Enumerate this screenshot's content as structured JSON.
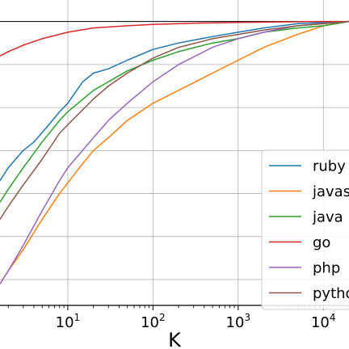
{
  "chart_data": {
    "type": "line",
    "xlabel": "K",
    "xscale": "log",
    "xlim": [
      1.6,
      20000
    ],
    "ylim": [
      0.34,
      1.05
    ],
    "grid": true,
    "legend_position": "center-right",
    "x_ticks": [
      {
        "base": "10",
        "exp": "1",
        "value": 10
      },
      {
        "base": "10",
        "exp": "2",
        "value": 100
      },
      {
        "base": "10",
        "exp": "3",
        "value": 1000
      },
      {
        "base": "10",
        "exp": "4",
        "value": 10000
      }
    ],
    "y_gridlines": [
      0.4,
      0.5,
      0.6,
      0.7,
      0.8,
      0.9,
      1.0
    ],
    "reference_line_y": 1.0,
    "series": [
      {
        "name": "ruby",
        "color": "#1f77b4",
        "points": [
          [
            1.6,
            0.63
          ],
          [
            2,
            0.66
          ],
          [
            3,
            0.7
          ],
          [
            4,
            0.72
          ],
          [
            6,
            0.76
          ],
          [
            8,
            0.79
          ],
          [
            10,
            0.81
          ],
          [
            15,
            0.86
          ],
          [
            20,
            0.88
          ],
          [
            30,
            0.89
          ],
          [
            50,
            0.91
          ],
          [
            100,
            0.935
          ],
          [
            200,
            0.95
          ],
          [
            500,
            0.965
          ],
          [
            1000,
            0.975
          ],
          [
            2000,
            0.985
          ],
          [
            5000,
            0.995
          ],
          [
            20000,
            1.0
          ]
        ]
      },
      {
        "name": "javascript",
        "color": "#ff7f0e",
        "points": [
          [
            1.6,
            0.39
          ],
          [
            2,
            0.42
          ],
          [
            3,
            0.47
          ],
          [
            5,
            0.54
          ],
          [
            8,
            0.6
          ],
          [
            10,
            0.625
          ],
          [
            15,
            0.67
          ],
          [
            20,
            0.7
          ],
          [
            30,
            0.73
          ],
          [
            50,
            0.77
          ],
          [
            100,
            0.81
          ],
          [
            200,
            0.84
          ],
          [
            500,
            0.88
          ],
          [
            1000,
            0.91
          ],
          [
            2000,
            0.94
          ],
          [
            5000,
            0.97
          ],
          [
            10000,
            0.99
          ],
          [
            20000,
            1.0
          ]
        ]
      },
      {
        "name": "java",
        "color": "#2ca02c",
        "points": [
          [
            1.6,
            0.58
          ],
          [
            2,
            0.61
          ],
          [
            3,
            0.66
          ],
          [
            5,
            0.72
          ],
          [
            8,
            0.77
          ],
          [
            10,
            0.79
          ],
          [
            20,
            0.84
          ],
          [
            30,
            0.86
          ],
          [
            50,
            0.885
          ],
          [
            100,
            0.91
          ],
          [
            200,
            0.93
          ],
          [
            500,
            0.95
          ],
          [
            1000,
            0.96
          ],
          [
            2000,
            0.975
          ],
          [
            5000,
            0.985
          ],
          [
            10000,
            0.99
          ],
          [
            20000,
            1.0
          ]
        ]
      },
      {
        "name": "go",
        "color": "#d62728",
        "points": [
          [
            1.6,
            0.92
          ],
          [
            2,
            0.93
          ],
          [
            3,
            0.945
          ],
          [
            5,
            0.96
          ],
          [
            10,
            0.975
          ],
          [
            20,
            0.985
          ],
          [
            50,
            0.99
          ],
          [
            100,
            0.993
          ],
          [
            300,
            0.996
          ],
          [
            1000,
            0.998
          ],
          [
            10000,
            1.0
          ],
          [
            20000,
            1.0
          ]
        ]
      },
      {
        "name": "php",
        "color": "#9467bd",
        "points": [
          [
            1.6,
            0.39
          ],
          [
            2,
            0.42
          ],
          [
            3,
            0.48
          ],
          [
            5,
            0.56
          ],
          [
            8,
            0.63
          ],
          [
            10,
            0.66
          ],
          [
            20,
            0.73
          ],
          [
            30,
            0.77
          ],
          [
            50,
            0.81
          ],
          [
            100,
            0.86
          ],
          [
            200,
            0.9
          ],
          [
            500,
            0.94
          ],
          [
            1000,
            0.96
          ],
          [
            2000,
            0.975
          ],
          [
            5000,
            0.99
          ],
          [
            10000,
            0.995
          ],
          [
            20000,
            1.0
          ]
        ]
      },
      {
        "name": "python",
        "color": "#8c564b",
        "points": [
          [
            1.6,
            0.54
          ],
          [
            2,
            0.57
          ],
          [
            3,
            0.62
          ],
          [
            5,
            0.68
          ],
          [
            8,
            0.74
          ],
          [
            10,
            0.76
          ],
          [
            20,
            0.82
          ],
          [
            30,
            0.85
          ],
          [
            50,
            0.88
          ],
          [
            100,
            0.915
          ],
          [
            200,
            0.94
          ],
          [
            500,
            0.96
          ],
          [
            1000,
            0.97
          ],
          [
            2000,
            0.98
          ],
          [
            5000,
            0.99
          ],
          [
            10000,
            0.995
          ],
          [
            20000,
            1.0
          ]
        ]
      }
    ]
  }
}
